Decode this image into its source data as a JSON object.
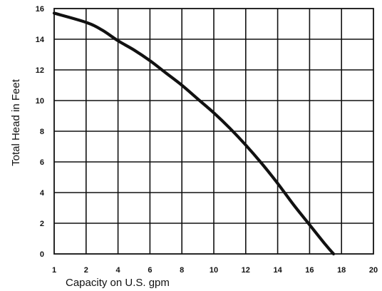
{
  "chart_data": {
    "type": "line",
    "title": "",
    "xlabel": "Capacity on U.S. gpm",
    "ylabel": "Total Head in Feet",
    "x_ticks": [
      "1",
      "2",
      "4",
      "6",
      "8",
      "10",
      "12",
      "14",
      "16",
      "18",
      "20"
    ],
    "y_ticks": [
      "0",
      "2",
      "4",
      "6",
      "8",
      "10",
      "12",
      "14",
      "16"
    ],
    "xlim": [
      1,
      20
    ],
    "ylim": [
      0,
      16
    ],
    "grid": true,
    "series": [
      {
        "name": "",
        "color": "#111111",
        "points": [
          [
            1,
            15.7
          ],
          [
            2,
            15.1
          ],
          [
            3,
            14.6
          ],
          [
            4,
            13.9
          ],
          [
            5,
            13.3
          ],
          [
            6,
            12.6
          ],
          [
            7,
            11.8
          ],
          [
            8,
            11.0
          ],
          [
            9,
            10.1
          ],
          [
            10,
            9.2
          ],
          [
            11,
            8.2
          ],
          [
            12,
            7.1
          ],
          [
            13,
            5.9
          ],
          [
            14,
            4.6
          ],
          [
            15,
            3.2
          ],
          [
            16,
            1.9
          ],
          [
            17,
            0.6
          ],
          [
            17.5,
            0.0
          ]
        ]
      }
    ]
  }
}
